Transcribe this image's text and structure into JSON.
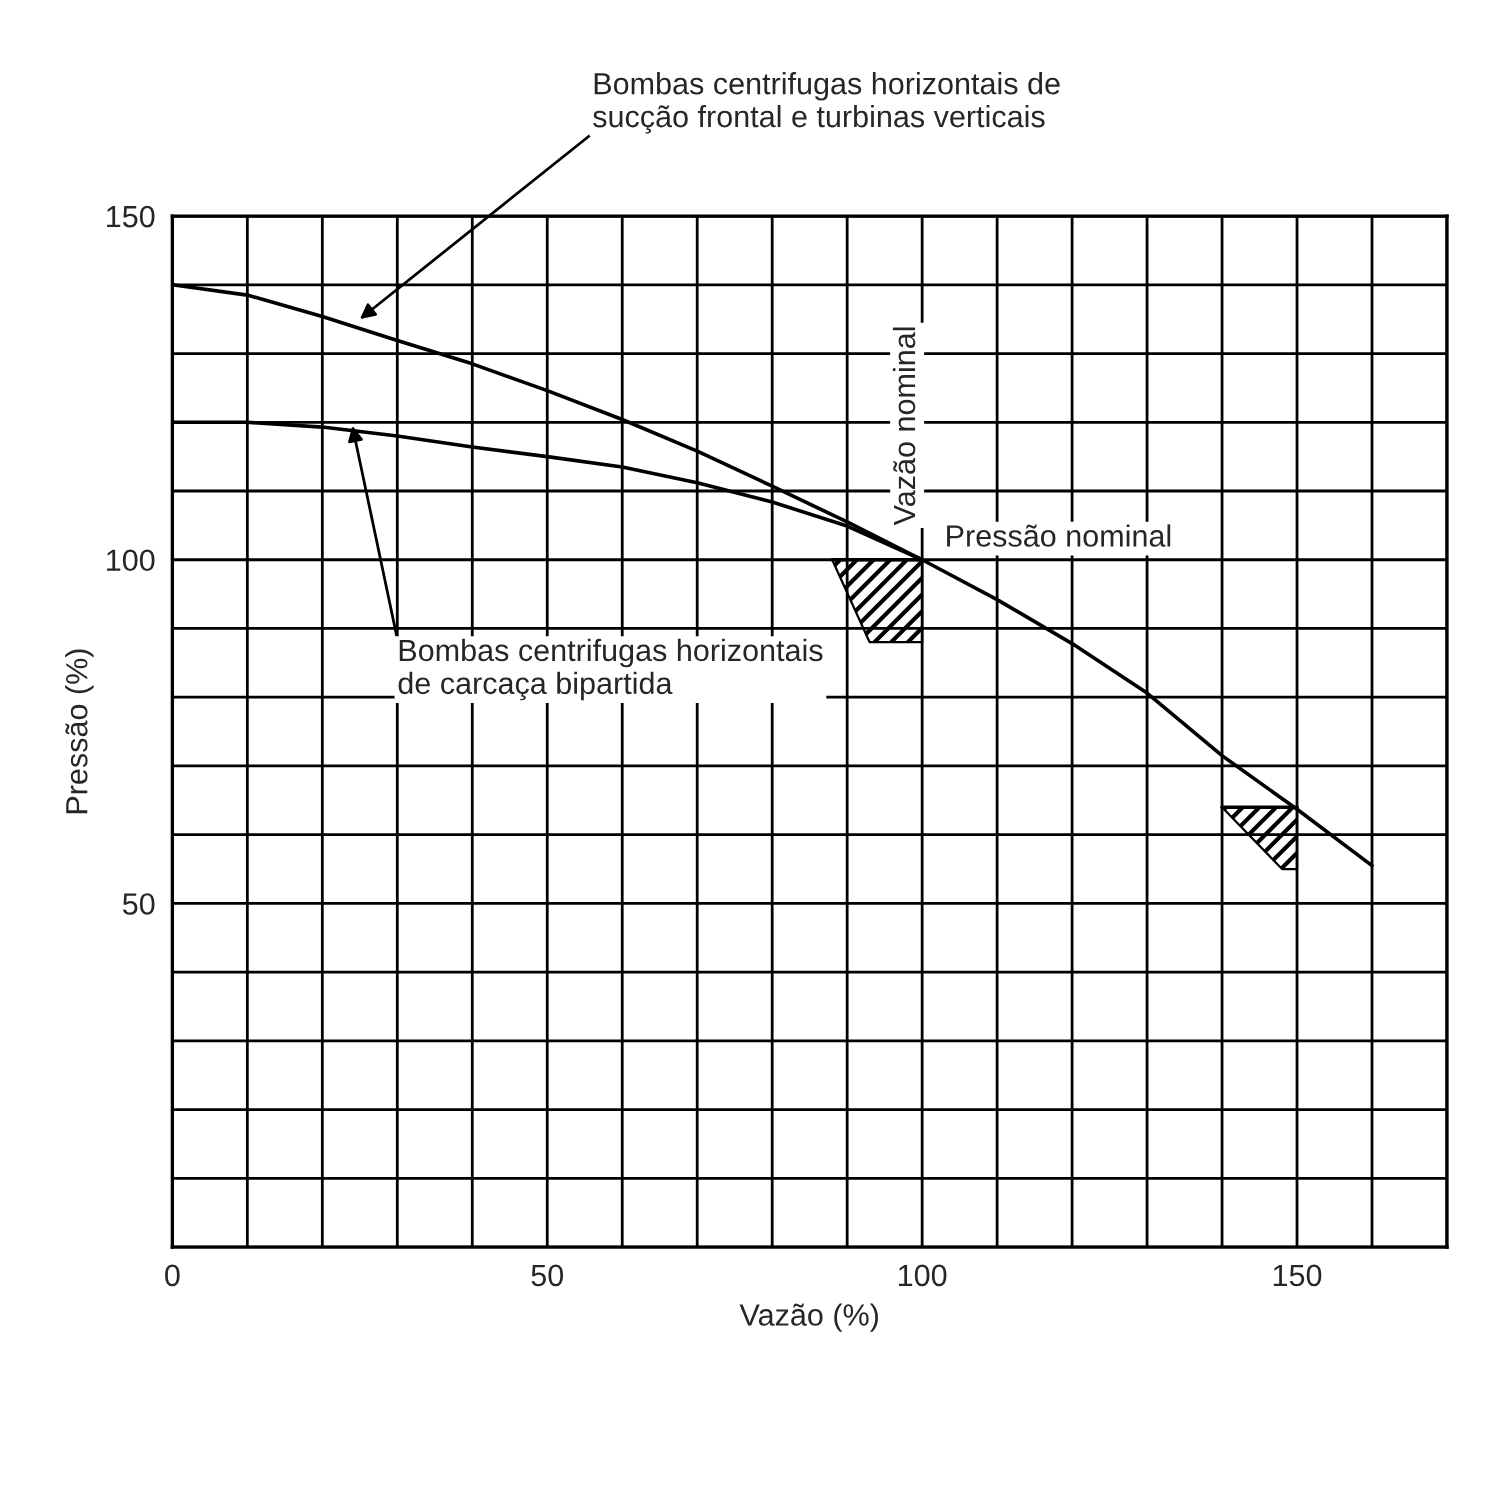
{
  "chart_data": {
    "type": "line",
    "xlabel": "Vazão (%)",
    "ylabel": "Pressão (%)",
    "xlim": [
      0,
      170
    ],
    "ylim": [
      0,
      150
    ],
    "xticks": [
      0,
      {
        "value": 10,
        "label": null
      },
      {
        "value": 20,
        "label": null
      },
      {
        "value": 30,
        "label": null
      },
      {
        "value": 40,
        "label": null
      },
      50,
      {
        "value": 60,
        "label": null
      },
      {
        "value": 70,
        "label": null
      },
      {
        "value": 80,
        "label": null
      },
      {
        "value": 90,
        "label": null
      },
      100,
      {
        "value": 110,
        "label": null
      },
      {
        "value": 120,
        "label": null
      },
      {
        "value": 130,
        "label": null
      },
      {
        "value": 140,
        "label": null
      },
      150,
      {
        "value": 160,
        "label": null
      },
      {
        "value": 170,
        "label": null
      }
    ],
    "yticks": [
      {
        "value": 0,
        "label": null
      },
      {
        "value": 10,
        "label": null
      },
      {
        "value": 20,
        "label": null
      },
      {
        "value": 30,
        "label": null
      },
      {
        "value": 40,
        "label": null
      },
      50,
      {
        "value": 60,
        "label": null
      },
      {
        "value": 70,
        "label": null
      },
      {
        "value": 80,
        "label": null
      },
      {
        "value": 90,
        "label": null
      },
      100,
      {
        "value": 110,
        "label": null
      },
      {
        "value": 120,
        "label": null
      },
      {
        "value": 130,
        "label": null
      },
      {
        "value": 140,
        "label": null
      },
      150
    ],
    "grid": true,
    "line_style": "solid",
    "marker": "none",
    "series": [
      {
        "color": "#000000",
        "x": [
          0,
          10,
          20,
          30,
          40,
          50,
          60,
          70,
          80,
          90,
          100,
          110,
          120,
          130,
          140,
          150,
          160
        ],
        "values": [
          140,
          138.5,
          135.4,
          131.9,
          128.5,
          124.6,
          120.4,
          115.8,
          110.7,
          105.5,
          100,
          94.2,
          87.8,
          80.6,
          71.5,
          63.7,
          55.5
        ]
      },
      {
        "color": "#000000",
        "x": [
          0,
          10,
          20,
          30,
          40,
          50,
          60,
          70,
          80,
          90,
          100
        ],
        "values": [
          120,
          120,
          119.3,
          118,
          116.4,
          115,
          113.5,
          111.2,
          108.4,
          104.9,
          100
        ]
      },
      {
        "color": "#000000",
        "x": [
          88,
          93,
          100
        ],
        "lower": [
          100,
          88,
          88
        ],
        "upper": [
          100,
          100,
          100
        ],
        "values": [
          100,
          100,
          100
        ]
      },
      {
        "color": "#000000",
        "x": [
          140,
          148,
          150
        ],
        "lower": [
          64,
          55,
          55
        ],
        "upper": [
          64,
          64,
          64
        ],
        "values": [
          64,
          64,
          64
        ]
      }
    ],
    "annotations": [
      {
        "text": "Bombas centrifugas horizontais de\nsucção frontal e turbinas verticais",
        "x": 25,
        "y": 135
      },
      {
        "text": "Bombas centrifugas horizontais\nde carcaça bipartida",
        "x": 24,
        "y": 119.5
      },
      {
        "text": "Vazão nominal",
        "x": 100,
        "y": 100
      },
      {
        "text": "Pressão nominal",
        "x": 100,
        "y": 100
      }
    ]
  }
}
